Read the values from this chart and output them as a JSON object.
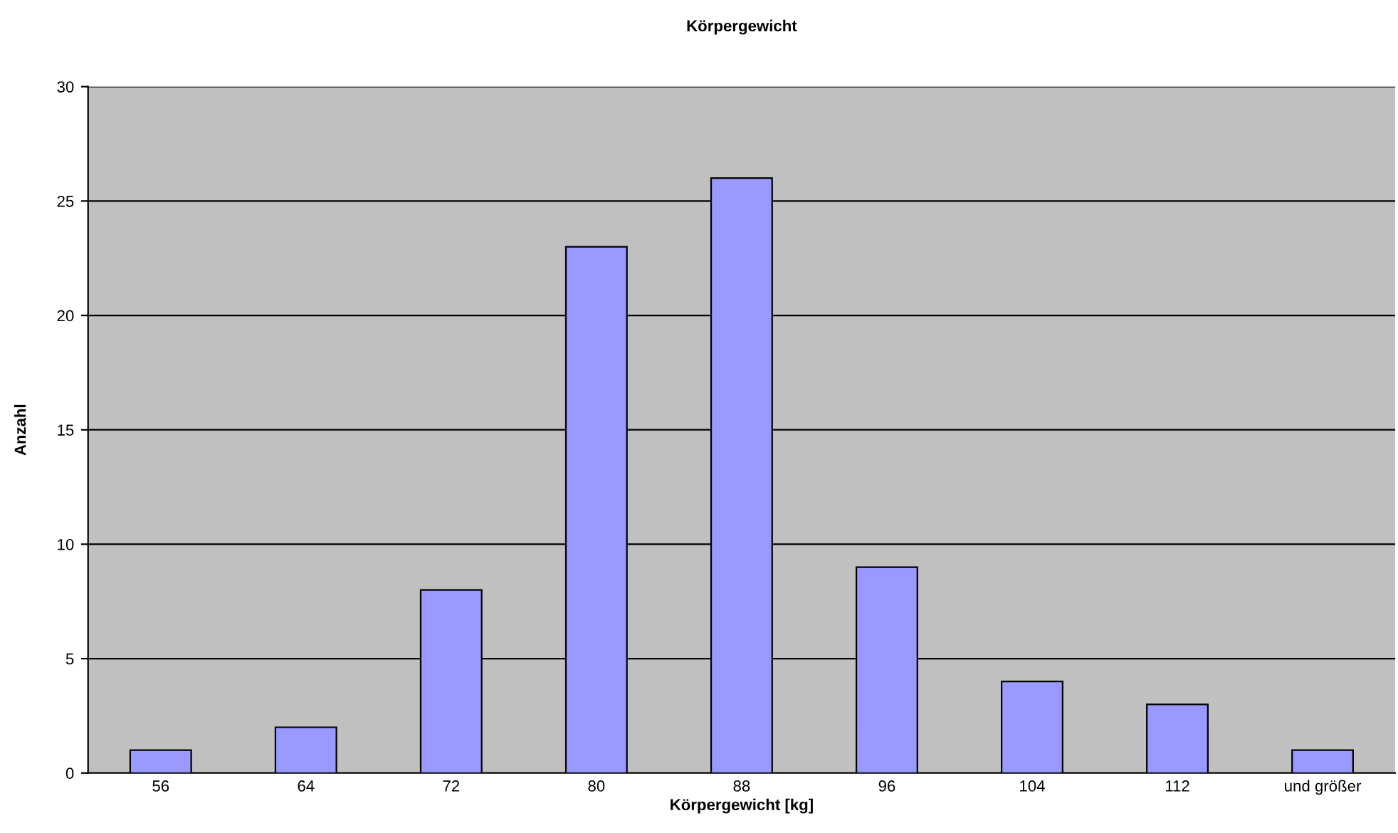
{
  "chart_data": {
    "type": "bar",
    "title": "Körpergewicht",
    "xlabel": "Körpergewicht [kg]",
    "ylabel": "Anzahl",
    "categories": [
      "56",
      "64",
      "72",
      "80",
      "88",
      "96",
      "104",
      "112",
      "und größer"
    ],
    "values": [
      1,
      2,
      8,
      23,
      26,
      9,
      4,
      3,
      1
    ],
    "color": "#9999ff",
    "ylim": [
      0,
      30
    ],
    "yticks": [
      0,
      5,
      10,
      15,
      20,
      25,
      30
    ],
    "grid": "y"
  }
}
